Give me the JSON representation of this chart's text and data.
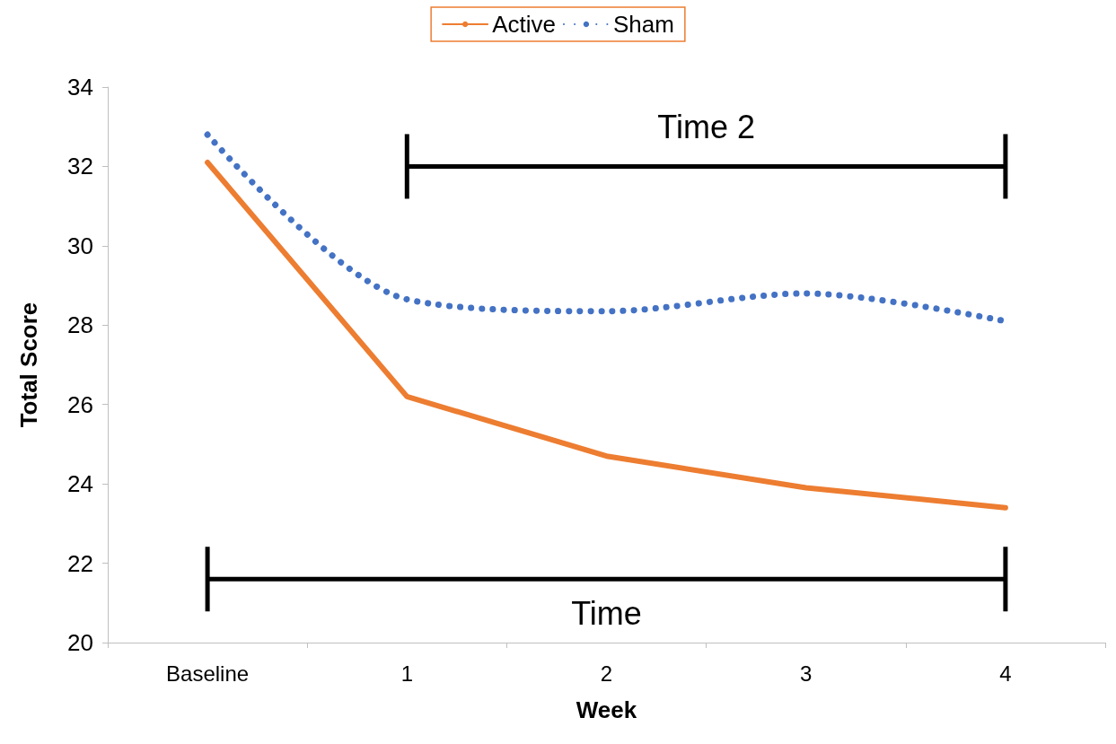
{
  "chart_data": {
    "type": "line",
    "xlabel": "Week",
    "ylabel": "Total Score",
    "categories": [
      "Baseline",
      "1",
      "2",
      "3",
      "4"
    ],
    "series": [
      {
        "name": "Active",
        "color": "#ed7d31",
        "line_style": "solid",
        "values": [
          32.1,
          26.2,
          24.7,
          23.9,
          23.4
        ]
      },
      {
        "name": "Sham",
        "color": "#4472c4",
        "line_style": "dotted",
        "values": [
          32.8,
          28.65,
          28.35,
          28.8,
          28.1
        ]
      },
      {
        "color": "#000000",
        "line_style": "solid",
        "values": [
          null,
          32,
          32,
          32,
          32
        ]
      },
      {
        "color": "#000000",
        "line_style": "solid",
        "values": [
          21.6,
          21.6,
          21.6,
          21.6,
          21.6
        ]
      }
    ],
    "ylim": [
      20,
      34
    ],
    "yticks": [
      20,
      22,
      24,
      26,
      28,
      30,
      32,
      34
    ],
    "grid": false,
    "legend": "top",
    "marker": "none",
    "annotations": [
      "Time 2",
      "Time"
    ]
  }
}
